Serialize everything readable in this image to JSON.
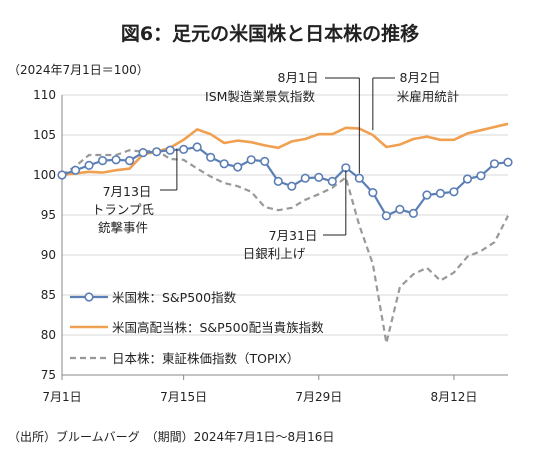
{
  "chart_data": {
    "type": "line",
    "title": "図6：足元の米国株と日本株の推移",
    "unit_note": "（2024年7月1日＝100）",
    "source": "（出所）ブルームバーグ　（期間）2024年7月1日～8月16日",
    "ylim": [
      75,
      110
    ],
    "yticks": [
      "110",
      "105",
      "100",
      "95",
      "90",
      "85",
      "80",
      "75"
    ],
    "xtick_labels": [
      "7月1日",
      "7月15日",
      "7月29日",
      "8月12日"
    ],
    "dates": [
      "7/1",
      "7/2",
      "7/3",
      "7/5",
      "7/8",
      "7/9",
      "7/10",
      "7/11",
      "7/12",
      "7/15",
      "7/16",
      "7/17",
      "7/18",
      "7/19",
      "7/22",
      "7/23",
      "7/24",
      "7/25",
      "7/26",
      "7/29",
      "7/30",
      "7/31",
      "8/1",
      "8/2",
      "8/5",
      "8/6",
      "8/7",
      "8/8",
      "8/9",
      "8/12",
      "8/13",
      "8/14",
      "8/15",
      "8/16"
    ],
    "colors": {
      "sp500": "#5b7fb5",
      "dividend": "#f0a050",
      "topix": "#999999"
    },
    "series": [
      {
        "name": "米国株：S&P500指数",
        "style": "line-markers",
        "values": [
          100.0,
          100.6,
          101.2,
          101.8,
          101.9,
          101.8,
          102.8,
          102.9,
          103.1,
          103.2,
          103.5,
          102.2,
          101.4,
          101.0,
          101.9,
          101.7,
          99.2,
          98.6,
          99.6,
          99.7,
          99.2,
          100.9,
          99.6,
          97.8,
          94.9,
          95.7,
          95.2,
          97.5,
          97.7,
          97.9,
          99.5,
          99.9,
          101.4,
          101.6
        ]
      },
      {
        "name": "米国高配当株：S&P500配当貴族指数",
        "style": "line",
        "values": [
          100.0,
          100.2,
          100.4,
          100.3,
          100.6,
          100.8,
          102.6,
          102.9,
          103.4,
          104.4,
          105.7,
          105.1,
          104.0,
          104.3,
          104.1,
          103.7,
          103.4,
          104.2,
          104.5,
          105.1,
          105.1,
          105.9,
          105.8,
          105.0,
          103.5,
          103.8,
          104.5,
          104.8,
          104.4,
          104.4,
          105.2,
          105.6,
          106.0,
          106.4
        ]
      },
      {
        "name": "日本株：東証株価指数（TOPIX）",
        "style": "dashed",
        "values": [
          100.0,
          101.1,
          102.5,
          102.5,
          102.5,
          103.1,
          102.9,
          103.1,
          102.0,
          101.9,
          100.8,
          99.8,
          99.0,
          98.6,
          97.9,
          96.0,
          95.6,
          95.9,
          96.9,
          97.6,
          98.4,
          99.7,
          93.7,
          88.9,
          79.0,
          86.0,
          87.6,
          88.4,
          86.8,
          87.8,
          89.8,
          90.5,
          91.6,
          94.9
        ]
      }
    ],
    "annotations": [
      {
        "id": "jul13",
        "lines": [
          "7月13日",
          "トランプ氏",
          "銃撃事件"
        ]
      },
      {
        "id": "jul31",
        "lines": [
          "7月31日",
          "日銀利上げ"
        ]
      },
      {
        "id": "aug1",
        "lines": [
          "8月1日",
          "ISM製造業景気指数"
        ]
      },
      {
        "id": "aug2",
        "lines": [
          "8月2日",
          "米雇用統計"
        ]
      }
    ]
  }
}
